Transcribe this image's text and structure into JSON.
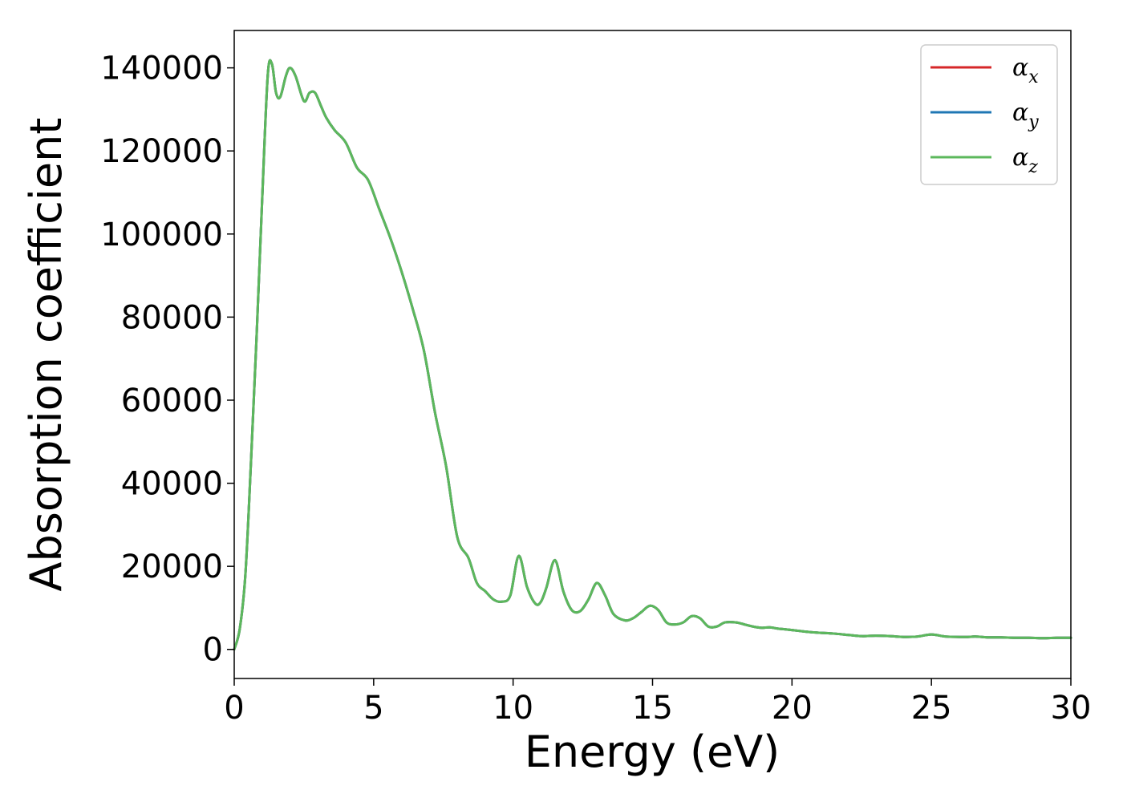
{
  "chart_data": {
    "type": "line",
    "title": "",
    "xlabel": "Energy (eV)",
    "ylabel": "Absorption coefficient",
    "xlim": [
      0,
      30
    ],
    "ylim": [
      -7000,
      149000
    ],
    "xticks": [
      "0",
      "5",
      "10",
      "15",
      "20",
      "25",
      "30"
    ],
    "yticks": [
      "0",
      "20000",
      "40000",
      "60000",
      "80000",
      "100000",
      "120000",
      "140000"
    ],
    "grid": false,
    "legend_position": "top-right",
    "x": [
      0,
      0.2,
      0.4,
      0.6,
      0.8,
      1.0,
      1.2,
      1.35,
      1.5,
      1.65,
      1.85,
      2.0,
      2.2,
      2.5,
      2.7,
      2.9,
      3.1,
      3.3,
      3.6,
      4.0,
      4.4,
      4.8,
      5.2,
      5.6,
      6.0,
      6.4,
      6.8,
      7.2,
      7.6,
      8.0,
      8.4,
      8.7,
      9.0,
      9.3,
      9.6,
      9.9,
      10.2,
      10.5,
      10.8,
      11.0,
      11.2,
      11.5,
      11.8,
      12.1,
      12.4,
      12.7,
      13.0,
      13.3,
      13.6,
      14.0,
      14.3,
      14.6,
      14.9,
      15.2,
      15.5,
      15.8,
      16.1,
      16.4,
      16.7,
      17.0,
      17.3,
      17.6,
      18.0,
      18.3,
      18.6,
      18.9,
      19.2,
      19.5,
      19.8,
      20.2,
      20.6,
      21.0,
      21.5,
      22.0,
      22.5,
      23.0,
      23.5,
      24.0,
      24.5,
      25.0,
      25.5,
      26.0,
      26.3,
      26.6,
      27.0,
      27.5,
      28.0,
      28.5,
      29.0,
      29.5,
      30.0
    ],
    "series": [
      {
        "name": "α_x",
        "color": "#d62728",
        "values": [
          0,
          5000,
          18000,
          45000,
          75000,
          108000,
          138000,
          141000,
          134000,
          133000,
          138000,
          140000,
          138000,
          132000,
          134000,
          134000,
          131000,
          128000,
          125000,
          122000,
          116000,
          113000,
          106000,
          99000,
          91000,
          82000,
          72000,
          57000,
          44000,
          27000,
          22000,
          16000,
          14000,
          12000,
          11500,
          13000,
          22500,
          15000,
          11000,
          11500,
          15000,
          21500,
          14000,
          9500,
          9200,
          12000,
          16000,
          13000,
          8500,
          7000,
          7500,
          9000,
          10500,
          9500,
          6500,
          6000,
          6500,
          8000,
          7500,
          5500,
          5500,
          6500,
          6500,
          6000,
          5500,
          5200,
          5300,
          5000,
          4800,
          4500,
          4200,
          4000,
          3800,
          3500,
          3200,
          3300,
          3200,
          3000,
          3100,
          3600,
          3100,
          3000,
          3000,
          3100,
          2900,
          2900,
          2800,
          2800,
          2700,
          2800,
          2800
        ]
      },
      {
        "name": "α_y",
        "color": "#1f77b4",
        "values": [
          0,
          5000,
          18000,
          45000,
          75000,
          108000,
          138000,
          141000,
          134000,
          133000,
          138000,
          140000,
          138000,
          132000,
          134000,
          134000,
          131000,
          128000,
          125000,
          122000,
          116000,
          113000,
          106000,
          99000,
          91000,
          82000,
          72000,
          57000,
          44000,
          27000,
          22000,
          16000,
          14000,
          12000,
          11500,
          13000,
          22500,
          15000,
          11000,
          11500,
          15000,
          21500,
          14000,
          9500,
          9200,
          12000,
          16000,
          13000,
          8500,
          7000,
          7500,
          9000,
          10500,
          9500,
          6500,
          6000,
          6500,
          8000,
          7500,
          5500,
          5500,
          6500,
          6500,
          6000,
          5500,
          5200,
          5300,
          5000,
          4800,
          4500,
          4200,
          4000,
          3800,
          3500,
          3200,
          3300,
          3200,
          3000,
          3100,
          3600,
          3100,
          3000,
          3000,
          3100,
          2900,
          2900,
          2800,
          2800,
          2700,
          2800,
          2800
        ]
      },
      {
        "name": "α_z",
        "color": "#5cb85c",
        "values": [
          0,
          5000,
          18000,
          45000,
          75000,
          108000,
          138000,
          141000,
          134000,
          133000,
          138000,
          140000,
          138000,
          132000,
          134000,
          134000,
          131000,
          128000,
          125000,
          122000,
          116000,
          113000,
          106000,
          99000,
          91000,
          82000,
          72000,
          57000,
          44000,
          27000,
          22000,
          16000,
          14000,
          12000,
          11500,
          13000,
          22500,
          15000,
          11000,
          11500,
          15000,
          21500,
          14000,
          9500,
          9200,
          12000,
          16000,
          13000,
          8500,
          7000,
          7500,
          9000,
          10500,
          9500,
          6500,
          6000,
          6500,
          8000,
          7500,
          5500,
          5500,
          6500,
          6500,
          6000,
          5500,
          5200,
          5300,
          5000,
          4800,
          4500,
          4200,
          4000,
          3800,
          3500,
          3200,
          3300,
          3200,
          3000,
          3100,
          3600,
          3100,
          3000,
          3000,
          3100,
          2900,
          2900,
          2800,
          2800,
          2700,
          2800,
          2800
        ]
      }
    ],
    "legend": [
      {
        "symbol": "α",
        "subscript": "x",
        "color": "#d62728"
      },
      {
        "symbol": "α",
        "subscript": "y",
        "color": "#1f77b4"
      },
      {
        "symbol": "α",
        "subscript": "z",
        "color": "#5cb85c"
      }
    ]
  }
}
